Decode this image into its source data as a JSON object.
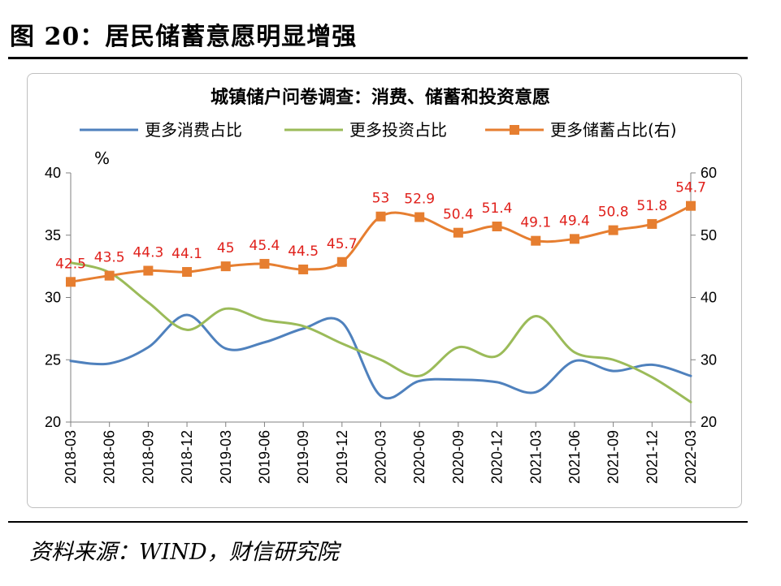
{
  "figure_title": "图 20：居民储蓄意愿明显增强",
  "source_note": "资料来源：WIND，财信研究院",
  "chart_data": {
    "type": "line",
    "title": "城镇储户问卷调查：消费、储蓄和投资意愿",
    "left_axis_unit": "%",
    "categories": [
      "2018-03",
      "2018-06",
      "2018-09",
      "2018-12",
      "2019-03",
      "2019-06",
      "2019-09",
      "2019-12",
      "2020-03",
      "2020-06",
      "2020-09",
      "2020-12",
      "2021-03",
      "2021-06",
      "2021-09",
      "2021-12",
      "2022-03"
    ],
    "left_ylim": [
      20,
      40
    ],
    "left_ticks": [
      "20",
      "25",
      "30",
      "35",
      "40"
    ],
    "right_ylim": [
      20,
      60
    ],
    "right_ticks": [
      "20",
      "30",
      "40",
      "50",
      "60"
    ],
    "series": [
      {
        "name": "更多消费占比",
        "axis": "left",
        "color": "#4f81bd",
        "marker": false,
        "values": [
          24.9,
          24.7,
          26.0,
          28.6,
          25.9,
          26.4,
          27.5,
          28.0,
          22.1,
          23.3,
          23.4,
          23.2,
          22.4,
          24.9,
          24.1,
          24.6,
          23.7
        ]
      },
      {
        "name": "更多投资占比",
        "axis": "left",
        "color": "#9bbb59",
        "marker": false,
        "values": [
          32.8,
          32.0,
          29.6,
          27.4,
          29.1,
          28.2,
          27.7,
          26.3,
          25.0,
          23.7,
          26.0,
          25.3,
          28.5,
          25.6,
          25.0,
          23.6,
          21.6
        ]
      },
      {
        "name": "更多储蓄占比(右)",
        "axis": "right",
        "color": "#e67e30",
        "marker": true,
        "values": [
          42.5,
          43.5,
          44.3,
          44.1,
          45.0,
          45.4,
          44.5,
          45.7,
          53.0,
          52.9,
          50.4,
          51.4,
          49.1,
          49.4,
          50.8,
          51.8,
          54.7
        ],
        "labels": [
          "42.5",
          "43.5",
          "44.3",
          "44.1",
          "45",
          "45.4",
          "44.5",
          "45.7",
          "53",
          "52.9",
          "50.4",
          "51.4",
          "49.1",
          "49.4",
          "50.8",
          "51.8",
          "54.7"
        ]
      }
    ]
  }
}
